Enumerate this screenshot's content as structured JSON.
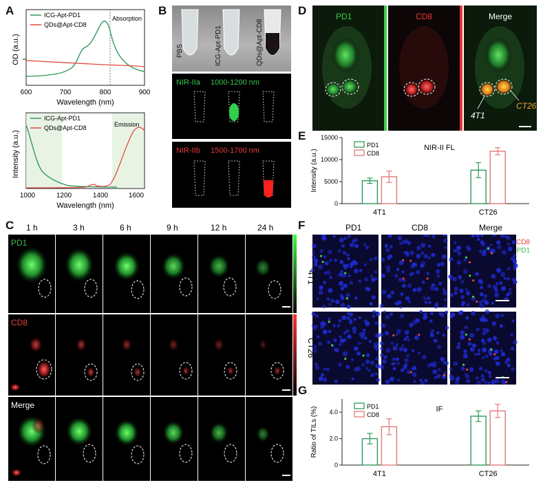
{
  "panels": {
    "a": "A",
    "b": "B",
    "c": "C",
    "d": "D",
    "e": "E",
    "f": "F",
    "g": "G"
  },
  "panelA": {
    "top": {
      "ylabel": "OD (a.u.)",
      "xlabel": "Wavelength (nm)",
      "xticks": [
        "600",
        "700",
        "800",
        "900"
      ],
      "annotation": "Absorption",
      "legend": [
        {
          "name": "ICG-Apt-PD1",
          "color": "#2e9a5b"
        },
        {
          "name": "QDs@Apt-CD8",
          "color": "#e2483e"
        }
      ]
    },
    "bottom": {
      "ylabel": "Intensity (a.u.)",
      "xlabel": "Wavelength (nm)",
      "xticks": [
        "1000",
        "1200",
        "1400",
        "1600"
      ],
      "annotation": "Emission",
      "legend": [
        {
          "name": "ICG-Apt-PD1",
          "color": "#2e9a5b"
        },
        {
          "name": "QDs@Apt-CD8",
          "color": "#e2483e"
        }
      ]
    }
  },
  "panelB": {
    "tubes": [
      "PBS",
      "ICG-Apt-PD1",
      "QDs@Apt-CD8"
    ],
    "nir2a": {
      "name": "NIR-IIa",
      "range": "1000-1200 nm",
      "color": "#36c94a"
    },
    "nir2b": {
      "name": "NIR-IIb",
      "range": "1500-1700 nm",
      "color": "#ee3b3b"
    }
  },
  "panelC": {
    "times": [
      "1 h",
      "3 h",
      "6 h",
      "9 h",
      "12 h",
      "24 h"
    ],
    "rows": [
      {
        "label": "PD1",
        "color": "#3fbf4f"
      },
      {
        "label": "CD8",
        "color": "#e8423c"
      },
      {
        "label": "Merge",
        "color": "#ffffff"
      }
    ]
  },
  "panelD": {
    "labels": [
      "PD1",
      "CD8",
      "Merge"
    ],
    "tumors": [
      "4T1",
      "CT26"
    ]
  },
  "chart_data": [
    {
      "type": "bar",
      "title": "NIR-II FL",
      "ylabel": "Intensity (a.u.)",
      "categories": [
        "4T1",
        "CT26"
      ],
      "ylim": [
        0,
        15000
      ],
      "yticks": [
        "0",
        "5000",
        "10000",
        "15000"
      ],
      "series": [
        {
          "name": "PD1",
          "color": "#2e9a5b",
          "values": [
            5200,
            7600
          ],
          "errors": [
            600,
            1700
          ]
        },
        {
          "name": "CD8",
          "color": "#e07a7a",
          "values": [
            6100,
            11900
          ],
          "errors": [
            1300,
            800
          ]
        }
      ],
      "legend": "top-left"
    },
    {
      "type": "bar",
      "title": "IF",
      "ylabel": "Ratio of TILs (%)",
      "categories": [
        "4T1",
        "CT26"
      ],
      "ylim": [
        0,
        5
      ],
      "yticks": [
        "0",
        "2.0",
        "4.0"
      ],
      "series": [
        {
          "name": "PD1",
          "color": "#2e9a5b",
          "values": [
            2.0,
            3.7
          ],
          "errors": [
            0.4,
            0.4
          ]
        },
        {
          "name": "CD8",
          "color": "#e07a7a",
          "values": [
            2.9,
            4.1
          ],
          "errors": [
            0.6,
            0.5
          ]
        }
      ],
      "legend": "top-left"
    }
  ],
  "panelF": {
    "cols": [
      "PD1",
      "CD8",
      "Merge"
    ],
    "rows": [
      "4T1",
      "CT26"
    ],
    "legend": [
      {
        "name": "CD8",
        "color": "#e8423c"
      },
      {
        "name": "PD1",
        "color": "#3fbf4f"
      }
    ]
  }
}
